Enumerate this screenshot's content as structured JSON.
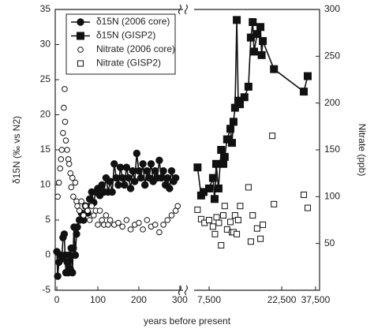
{
  "chart_data": {
    "type": "scatter",
    "xlabel": "years before present",
    "ylabel": "δ15N (‰ vs N2)",
    "y2label": "Nitrate (ppb)",
    "panels": [
      {
        "xlim": [
          -4,
          308
        ],
        "xscale": "linear",
        "xticks": [
          0,
          100,
          200,
          300
        ]
      },
      {
        "xlim": [
          5980,
          39840
        ],
        "xscale": "log",
        "xticks": [
          {
            "value": 7500,
            "label": "7,500"
          },
          {
            "value": 22500,
            "label": "22,500"
          },
          {
            "value": 37500,
            "label": "37,500"
          }
        ]
      }
    ],
    "ylim": [
      -5,
      35
    ],
    "yticks": [
      -5,
      0,
      5,
      10,
      15,
      20,
      25,
      30,
      35
    ],
    "y2lim": [
      0,
      300
    ],
    "y2ticks": [
      50,
      100,
      150,
      200,
      250,
      300
    ],
    "legend": "upper-left",
    "series": [
      {
        "name": "δ15N (2006 core)",
        "color": "#111111",
        "marker": "circle",
        "filled": true,
        "line": true,
        "axis": "y",
        "panel": 0,
        "x": [
          0,
          2,
          5,
          8,
          12,
          15,
          18,
          20,
          22,
          25,
          28,
          30,
          33,
          35,
          38,
          40,
          42,
          45,
          48,
          50,
          55,
          60,
          65,
          70,
          75,
          80,
          85,
          90,
          95,
          100,
          105,
          110,
          115,
          120,
          125,
          130,
          135,
          140,
          145,
          150,
          155,
          160,
          165,
          170,
          175,
          180,
          185,
          190,
          195,
          200,
          205,
          210,
          215,
          220,
          225,
          230,
          235,
          240,
          245,
          250,
          255,
          260,
          265,
          270,
          275,
          280,
          285,
          290
        ],
        "values": [
          0.5,
          -3,
          -1,
          0,
          -0.5,
          2.5,
          3,
          0,
          -2.5,
          -1,
          -2.5,
          0,
          -2,
          1,
          -2.5,
          1,
          4,
          0,
          3,
          4,
          5,
          6,
          5,
          7,
          6,
          8,
          9,
          7.5,
          9,
          9.5,
          8.5,
          10,
          9,
          11,
          9,
          10.5,
          9,
          13,
          11,
          10,
          12.5,
          11,
          10,
          12.5,
          11,
          9.5,
          12,
          10.5,
          14.5,
          12,
          11,
          13,
          10,
          12,
          11,
          13,
          10.5,
          12,
          11,
          13.5,
          11,
          12,
          10,
          11,
          9.5,
          12,
          10.5,
          11
        ]
      },
      {
        "name": "δ15N (GISP2)",
        "color": "#111111",
        "marker": "square",
        "filled": true,
        "line": true,
        "axis": "y",
        "panel": 1,
        "x": [
          6300,
          6650,
          6900,
          7500,
          7950,
          8150,
          8350,
          8650,
          9000,
          9300,
          9500,
          9850,
          10350,
          10600,
          10850,
          11100,
          11400,
          11650,
          11950,
          12800,
          13600,
          14100,
          14500,
          14800,
          15500,
          16300,
          16600,
          16900,
          20000,
          31400,
          33300
        ],
        "values": [
          12.5,
          8.5,
          9,
          9.5,
          11,
          8,
          13,
          9.5,
          15,
          13,
          14,
          16.5,
          18,
          16,
          19,
          21,
          33.5,
          22,
          21.5,
          22.5,
          24,
          31,
          33.2,
          29,
          31.5,
          32.5,
          28.5,
          30.5,
          26.5,
          23.3,
          25.5
        ]
      },
      {
        "name": "Nitrate (2006 core)",
        "color": "#111111",
        "marker": "circle",
        "filled": false,
        "line": false,
        "axis": "y2",
        "panel": 0,
        "x": [
          2,
          5,
          8,
          10,
          12,
          15,
          17,
          19,
          20,
          22,
          25,
          28,
          30,
          33,
          35,
          38,
          40,
          45,
          48,
          50,
          55,
          60,
          65,
          70,
          75,
          80,
          85,
          90,
          95,
          100,
          105,
          110,
          115,
          120,
          125,
          130,
          140,
          150,
          160,
          170,
          180,
          190,
          200,
          210,
          220,
          230,
          240,
          250,
          260,
          270,
          280,
          290,
          295
        ],
        "values": [
          100,
          115,
          130,
          140,
          150,
          168,
          195,
          215,
          180,
          160,
          150,
          140,
          135,
          125,
          110,
          120,
          100,
          115,
          95,
          90,
          85,
          95,
          80,
          90,
          85,
          75,
          90,
          80,
          85,
          70,
          85,
          75,
          70,
          80,
          70,
          75,
          70,
          72,
          68,
          75,
          65,
          70,
          72,
          65,
          75,
          68,
          70,
          62,
          70,
          75,
          80,
          85,
          90
        ]
      },
      {
        "name": "Nitrate (GISP2)",
        "color": "#111111",
        "marker": "square",
        "filled": false,
        "line": false,
        "axis": "y2",
        "panel": 1,
        "x": [
          6300,
          6650,
          7000,
          7500,
          7950,
          8200,
          8400,
          8700,
          9000,
          9300,
          9500,
          9850,
          10350,
          10600,
          10850,
          11100,
          11400,
          11650,
          12000,
          13600,
          14100,
          14500,
          15500,
          16300,
          16900,
          19500,
          20000,
          31400,
          33300
        ],
        "values": [
          86,
          76,
          72,
          75,
          68,
          60,
          78,
          72,
          48,
          80,
          90,
          65,
          73,
          62,
          62,
          80,
          60,
          75,
          90,
          110,
          52,
          80,
          66,
          55,
          70,
          165,
          92,
          102,
          88
        ]
      }
    ]
  }
}
